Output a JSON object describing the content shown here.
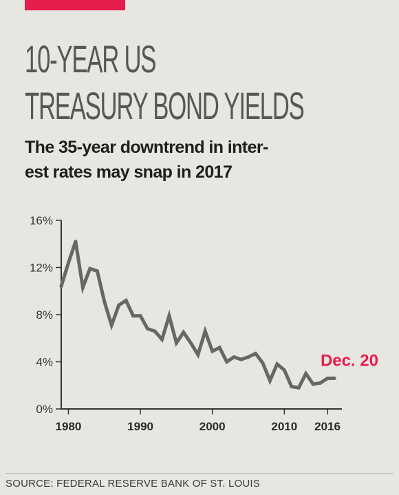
{
  "title_lines": [
    "10-YEAR US",
    "TREASURY BOND YIELDS"
  ],
  "subtitle_lines": [
    "The 35-year downtrend in inter-",
    "est rates may snap in 2017"
  ],
  "source": "SOURCE: FEDERAL RESERVE BANK OF ST. LOUIS",
  "colors": {
    "accent": "#e61e4d",
    "line": "#676767",
    "axis": "#333333",
    "background": "#e8e6e1"
  },
  "chart_data": {
    "type": "line",
    "title": "10-YEAR US TREASURY BOND YIELDS",
    "xlabel": "",
    "ylabel": "",
    "xlim": [
      1979,
      2018
    ],
    "ylim": [
      0,
      16
    ],
    "x_ticks": [
      1980,
      1990,
      2000,
      2010,
      2016
    ],
    "y_ticks": [
      0,
      4,
      8,
      12,
      16
    ],
    "y_tick_labels": [
      "0%",
      "4%",
      "8%",
      "12%",
      "16%"
    ],
    "grid": false,
    "annotation": {
      "text": "Dec. 20",
      "x": 2016.97,
      "y": 2.6
    },
    "series": [
      {
        "x": [
          1979,
          1980,
          1981,
          1982,
          1983,
          1984,
          1985,
          1986,
          1987,
          1988,
          1989,
          1990,
          1991,
          1992,
          1993,
          1994,
          1995,
          1996,
          1997,
          1998,
          1999,
          2000,
          2001,
          2002,
          2003,
          2004,
          2005,
          2006,
          2007,
          2008,
          2009,
          2010,
          2011,
          2012,
          2013,
          2014,
          2015,
          2016,
          2016.97
        ],
        "values": [
          10.4,
          12.4,
          14.2,
          10.3,
          11.9,
          11.7,
          9.1,
          7.1,
          8.8,
          9.2,
          7.9,
          7.9,
          6.8,
          6.6,
          5.9,
          7.9,
          5.6,
          6.5,
          5.6,
          4.6,
          6.6,
          4.9,
          5.2,
          4.0,
          4.4,
          4.2,
          4.4,
          4.7,
          3.9,
          2.4,
          3.8,
          3.3,
          1.9,
          1.8,
          3.0,
          2.1,
          2.2,
          2.6,
          2.6
        ]
      }
    ]
  }
}
